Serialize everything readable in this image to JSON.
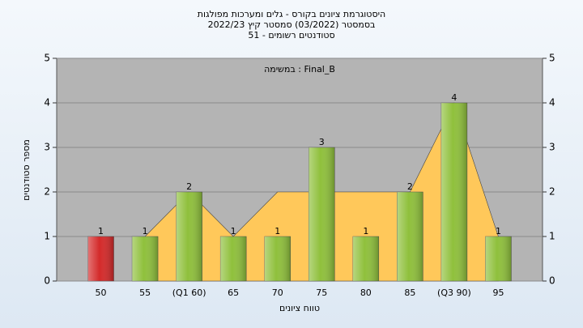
{
  "chart_data": {
    "type": "bar",
    "title": [
      "היסטוגרמת ציונים בקורס - גלים ומערכות מפולגות",
      "בסמסטר  (03/2022)  סמסטר קיץ 2022/23",
      "סטודנטים רשומים - 51"
    ],
    "annotation": "במשימה : Final_B",
    "x_label": "טווח ציונים",
    "y_label": "מספר סטודנטים",
    "categories": [
      "50",
      "55",
      "(Q1 60)",
      "65",
      "70",
      "75",
      "80",
      "85",
      "(Q3 90)",
      "95"
    ],
    "values": [
      1,
      1,
      2,
      1,
      1,
      3,
      1,
      2,
      4,
      1
    ],
    "colors": [
      "#d42a2a",
      "#8fc03c",
      "#8fc03c",
      "#8fc03c",
      "#8fc03c",
      "#8fc03c",
      "#8fc03c",
      "#8fc03c",
      "#8fc03c",
      "#8fc03c"
    ],
    "area": {
      "color": "#ffc85a",
      "values": [
        null,
        1,
        2,
        1,
        2,
        2,
        2,
        2,
        4,
        1
      ]
    },
    "ylim": [
      0,
      5
    ],
    "yticks": [
      0,
      1,
      2,
      3,
      4,
      5
    ],
    "y2lim": [
      0,
      5
    ],
    "y2ticks": [
      0,
      1,
      2,
      3,
      4,
      5
    ],
    "grid": true
  }
}
